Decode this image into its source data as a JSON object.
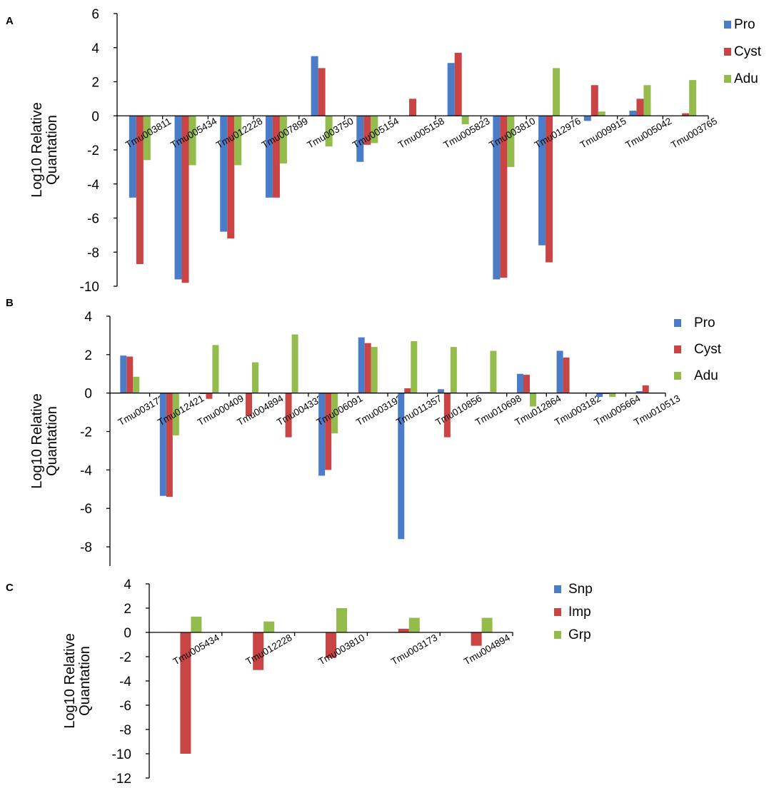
{
  "chart_data": [
    {
      "panel": "A",
      "type": "bar",
      "ylabel": "Log10 Relative Quantation",
      "ylim": [
        -10,
        6
      ],
      "yticks": [
        "6",
        "4",
        "2",
        "0",
        "-2",
        "-4",
        "-6",
        "-8",
        "-10"
      ],
      "categories": [
        "Tmu003811",
        "Tmu005434",
        "Tmu012228",
        "Tmu007899",
        "Tmu003750",
        "Tmu005154",
        "Tmu005158",
        "Tmu005823",
        "Tmu003810",
        "Tmu012976",
        "Tmu009915",
        "Tmu005042",
        "Tmu003765"
      ],
      "legend_position": "top-right",
      "series": [
        {
          "name": "Pro",
          "color": "#4a7cc7",
          "values": [
            -4.8,
            -9.6,
            -6.8,
            -4.8,
            3.5,
            -2.7,
            0,
            3.1,
            -9.6,
            -7.6,
            -0.3,
            0.3,
            0
          ]
        },
        {
          "name": "Cyst",
          "color": "#c94545",
          "values": [
            -8.7,
            -9.8,
            -7.2,
            -4.8,
            2.8,
            -1.7,
            1.0,
            3.7,
            -9.5,
            -8.6,
            1.8,
            1.0,
            0.15
          ]
        },
        {
          "name": "Adu",
          "color": "#94bc4c",
          "values": [
            -2.6,
            -2.9,
            -2.9,
            -2.8,
            -1.8,
            -1.6,
            0,
            -0.5,
            -3.0,
            2.8,
            0.25,
            1.8,
            2.1
          ]
        }
      ]
    },
    {
      "panel": "B",
      "type": "bar",
      "ylabel": "Log10 Relative Quantation",
      "ylim": [
        -9,
        4
      ],
      "yticks": [
        "4",
        "2",
        "0",
        "-2",
        "-4",
        "-6",
        "-8"
      ],
      "categories": [
        "Tmu003173",
        "Tmu012421",
        "Tmu000409",
        "Tmu004894",
        "Tmu004333",
        "Tmu006091",
        "Tmu003193",
        "Tmu011357",
        "Tmu010856",
        "Tmu010698",
        "Tmu012864",
        "Tmu003182",
        "Tmu005664",
        "Tmu010513"
      ],
      "legend_position": "top-right",
      "series": [
        {
          "name": "Pro",
          "color": "#4a7cc7",
          "values": [
            1.95,
            -5.35,
            -0.05,
            0,
            0,
            -4.3,
            2.9,
            -7.6,
            0.2,
            0.05,
            1.0,
            2.2,
            -0.2,
            0.1
          ]
        },
        {
          "name": "Cyst",
          "color": "#c94545",
          "values": [
            1.9,
            -5.4,
            -0.3,
            -1.2,
            -2.3,
            -4.0,
            2.6,
            0.25,
            -2.3,
            0.05,
            0.95,
            1.85,
            -0.05,
            0.4
          ]
        },
        {
          "name": "Adu",
          "color": "#94bc4c",
          "values": [
            0.85,
            -2.2,
            2.5,
            1.6,
            3.05,
            -2.1,
            2.4,
            2.7,
            2.4,
            2.2,
            -0.7,
            0,
            -0.2,
            0
          ]
        }
      ]
    },
    {
      "panel": "C",
      "type": "bar",
      "ylabel": "Log10 Relative Quantation",
      "ylim": [
        -12,
        4
      ],
      "yticks": [
        "4",
        "2",
        "0",
        "-2",
        "-4",
        "-6",
        "-8",
        "-10",
        "-12"
      ],
      "categories": [
        "Tmu005434",
        "Tmu012228",
        "Tmu003810",
        "Tmu003173",
        "Tmu004894"
      ],
      "legend_position": "top-right",
      "series": [
        {
          "name": "Snp",
          "color": "#4a7cc7",
          "values": [
            0,
            0,
            0,
            0,
            0
          ]
        },
        {
          "name": "Imp",
          "color": "#c94545",
          "values": [
            -10.0,
            -3.1,
            -2.1,
            0.3,
            -1.1
          ]
        },
        {
          "name": "Grp",
          "color": "#94bc4c",
          "values": [
            1.3,
            0.9,
            2.0,
            1.2,
            1.2
          ]
        }
      ]
    }
  ]
}
